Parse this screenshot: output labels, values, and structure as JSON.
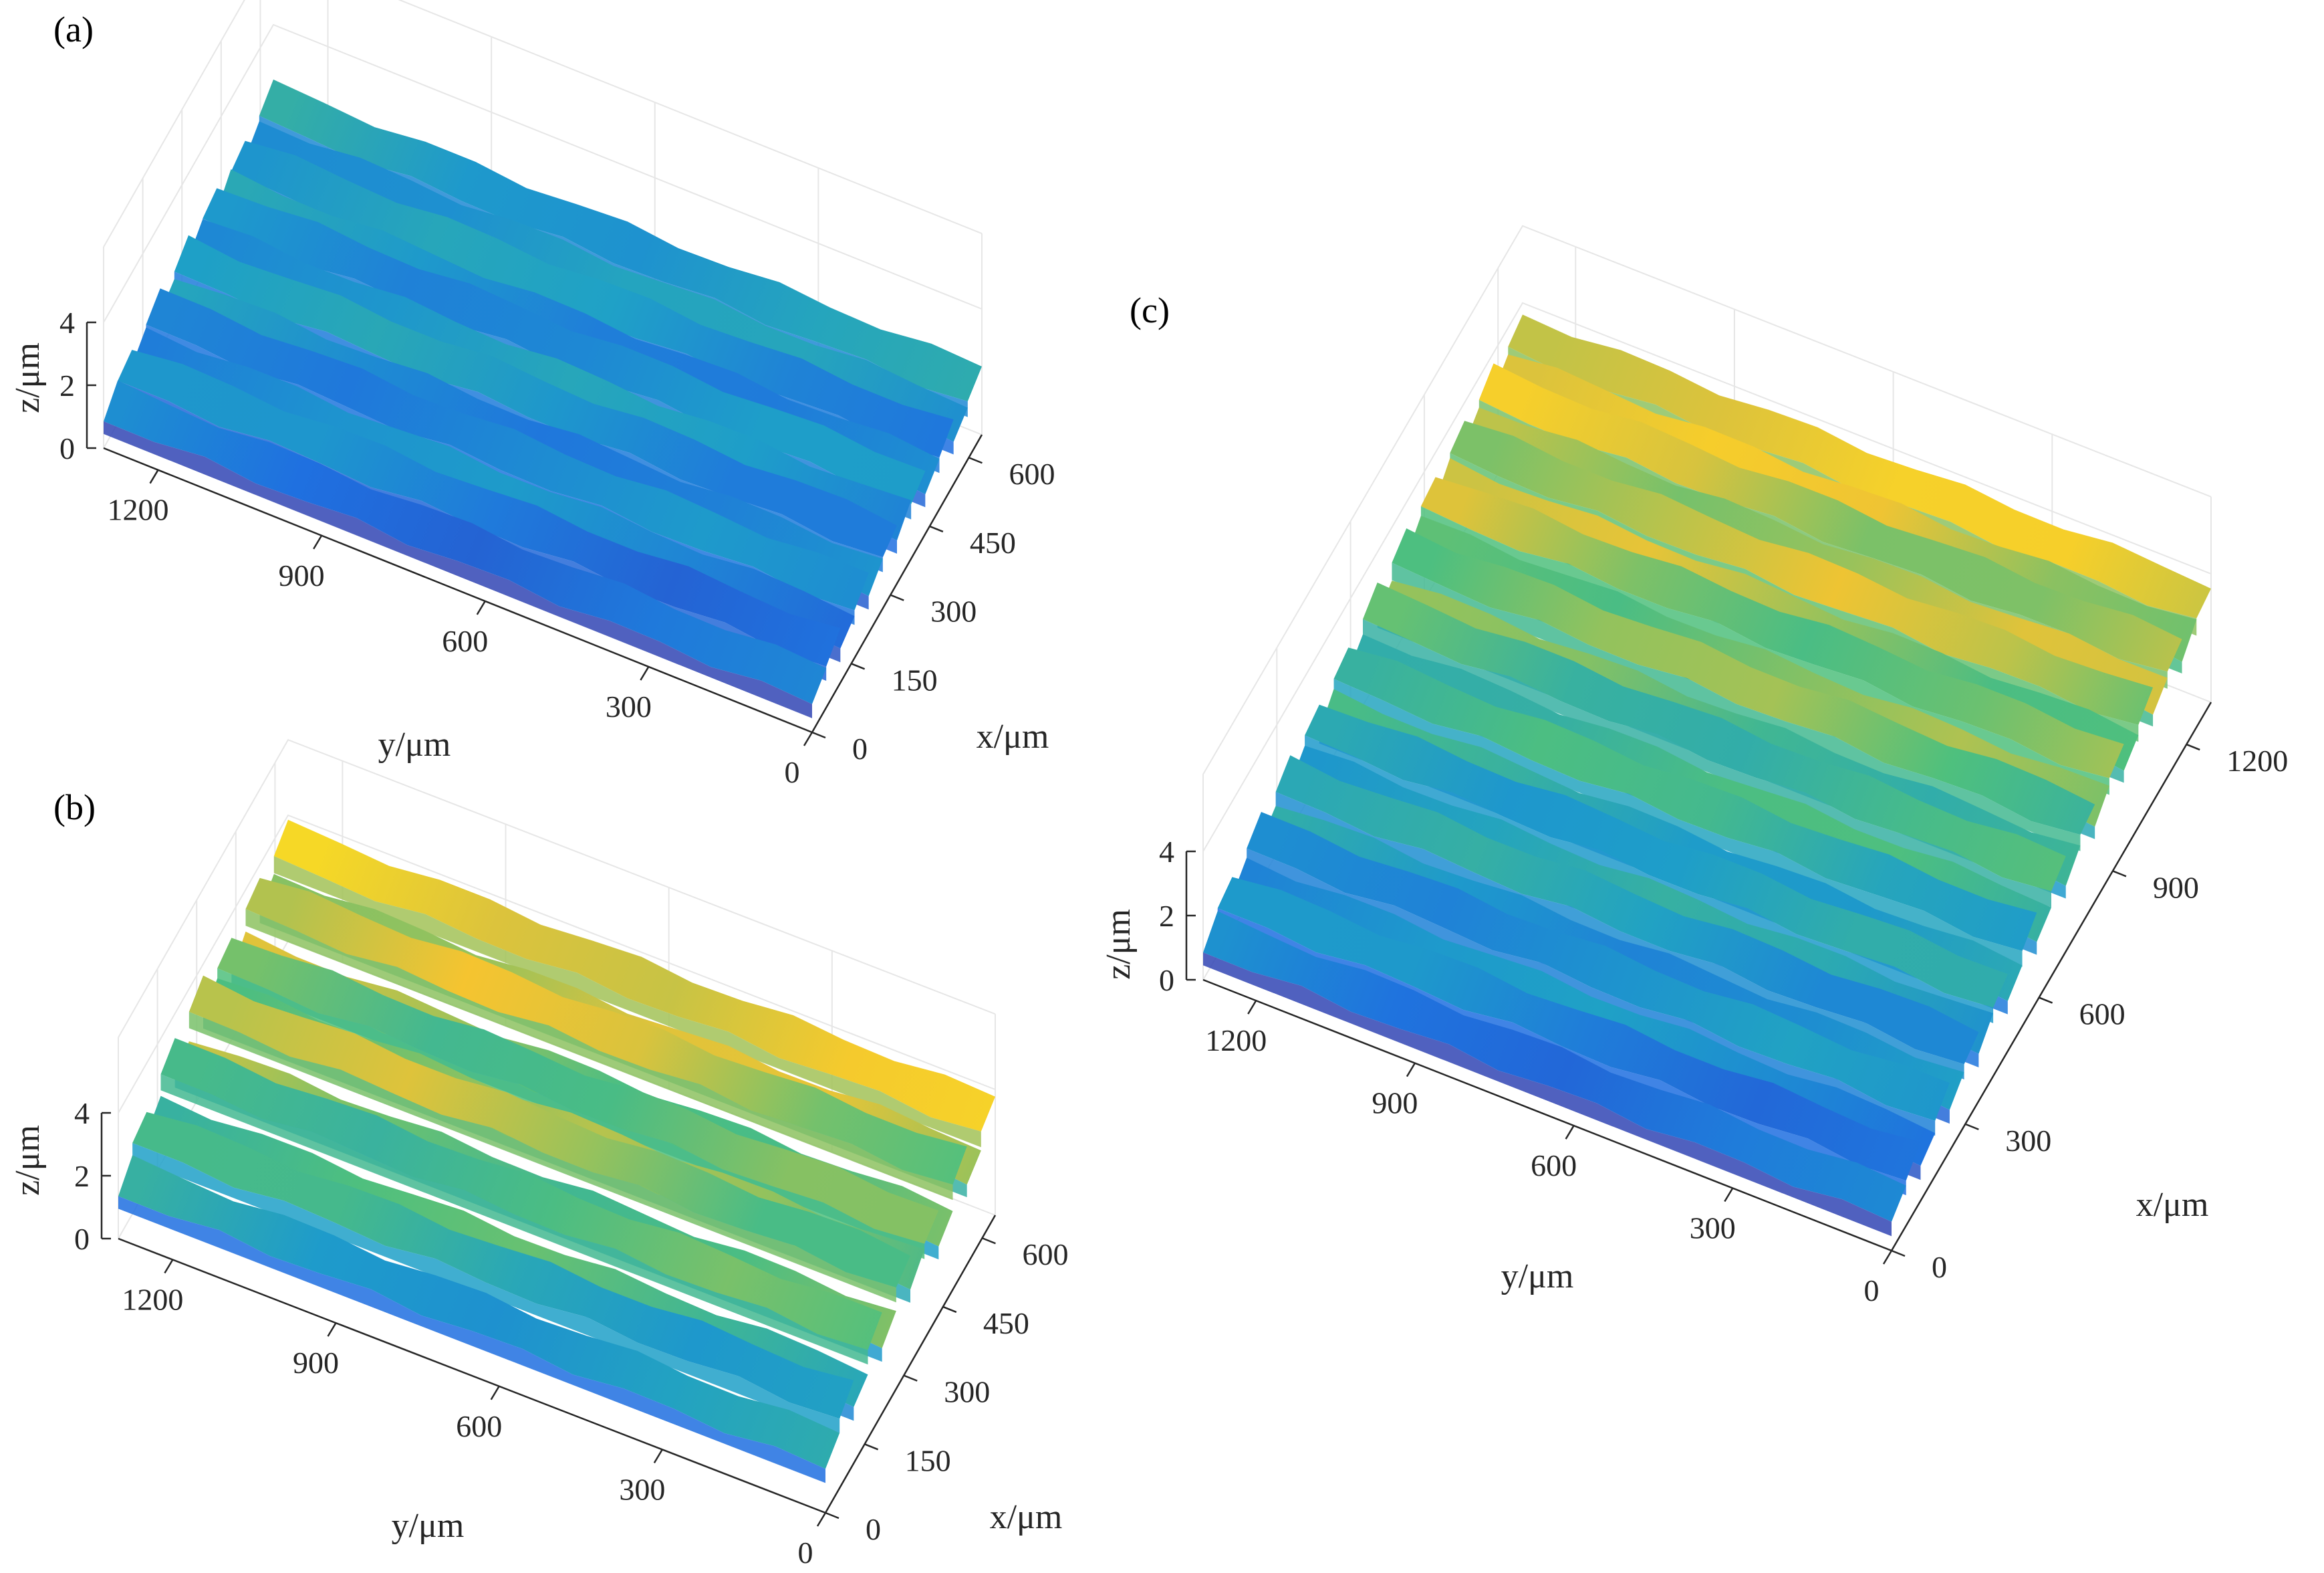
{
  "colors": {
    "low": "#3b2b9a",
    "mid_low": "#1f6fe0",
    "mid": "#1ea0c8",
    "mid_high": "#4fc07d",
    "high": "#f5c430",
    "peak": "#f8f01a"
  },
  "chart_data": [
    {
      "type": "surface",
      "panel_label": "(a)",
      "xlabel": "x/μm",
      "ylabel": "y/μm",
      "zlabel": "z/μm",
      "x_ticks": [
        "0",
        "150",
        "300",
        "450",
        "600"
      ],
      "y_ticks": [
        "0",
        "300",
        "600",
        "900",
        "1200"
      ],
      "z_ticks": [
        "0",
        "2",
        "4"
      ],
      "x_range": [
        0,
        650
      ],
      "y_range": [
        0,
        1300
      ],
      "z_range": [
        0,
        4
      ],
      "grooves": 6,
      "z_profile": [
        0.9,
        1.3,
        1.1,
        1.5,
        1.2,
        1.6,
        1.4,
        1.7,
        1.3,
        1.6,
        1.4,
        1.8
      ]
    },
    {
      "type": "surface",
      "panel_label": "(b)",
      "xlabel": "x/μm",
      "ylabel": "y/μm",
      "zlabel": "z/μm",
      "x_ticks": [
        "0",
        "150",
        "300",
        "450",
        "600"
      ],
      "y_ticks": [
        "0",
        "300",
        "600",
        "900",
        "1200"
      ],
      "z_ticks": [
        "0",
        "2",
        "4"
      ],
      "x_range": [
        0,
        650
      ],
      "y_range": [
        0,
        1300
      ],
      "z_range": [
        0,
        4
      ],
      "grooves": 6,
      "z_profile": [
        1.4,
        2.2,
        1.8,
        2.8,
        2.1,
        3.2,
        2.4,
        3.0,
        2.2,
        3.3,
        2.6,
        3.4
      ]
    },
    {
      "type": "surface",
      "panel_label": "(c)",
      "xlabel": "x/μm",
      "ylabel": "y/μm",
      "zlabel": "z/μm",
      "x_ticks": [
        "0",
        "300",
        "600",
        "900",
        "1200"
      ],
      "y_ticks": [
        "0",
        "300",
        "600",
        "900",
        "1200"
      ],
      "z_ticks": [
        "0",
        "2",
        "4"
      ],
      "x_range": [
        0,
        1300
      ],
      "y_range": [
        0,
        1300
      ],
      "z_range": [
        0,
        4
      ],
      "grooves": 11,
      "z_profile": [
        0.9,
        1.4,
        1.1,
        1.7,
        1.3,
        1.9,
        1.5,
        2.1,
        1.6,
        2.3,
        1.9,
        2.6,
        2.1,
        2.8,
        2.4,
        3.0,
        2.6,
        3.1,
        2.8,
        3.2,
        2.9,
        3.3
      ]
    }
  ]
}
